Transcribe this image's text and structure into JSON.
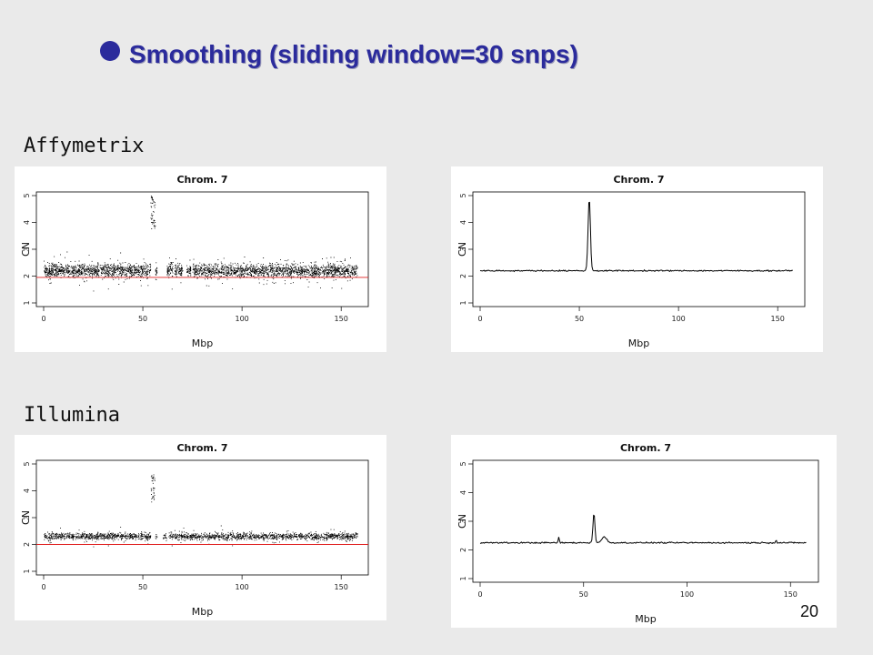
{
  "slide": {
    "title": "Smoothing (sliding window=30 snps)",
    "page_number": "20"
  },
  "sections": [
    {
      "label": "Affymetrix"
    },
    {
      "label": "Illumina"
    }
  ],
  "colors": {
    "title": "#2b2b9c",
    "reference_line": "#e02020",
    "data": "#000000"
  },
  "chart_data": [
    {
      "type": "scatter",
      "platform": "Affymetrix",
      "title": "Chrom. 7",
      "xlabel": "Mbp",
      "ylabel": "CN",
      "xlim": [
        0,
        160
      ],
      "ylim": [
        1,
        5
      ],
      "x_ticks": [
        0,
        50,
        100,
        150
      ],
      "y_ticks": [
        1,
        2,
        3,
        4,
        5
      ],
      "baseline": 2.2,
      "spread": 0.35,
      "reference_line": 1.95,
      "peak": {
        "x": 55,
        "y": 5.0,
        "width": 1.2
      },
      "gaps": [
        [
          57,
          62
        ],
        [
          65,
          66
        ],
        [
          70,
          72
        ],
        [
          74,
          75
        ]
      ],
      "x_range_data": [
        0,
        158
      ]
    },
    {
      "type": "line",
      "platform": "Affymetrix",
      "title": "Chrom. 7",
      "xlabel": "Mbp",
      "ylabel": "CN",
      "xlim": [
        0,
        160
      ],
      "ylim": [
        1,
        5
      ],
      "x_ticks": [
        0,
        50,
        100,
        150
      ],
      "y_ticks": [
        1,
        2,
        3,
        4,
        5
      ],
      "baseline": 2.2,
      "peak": {
        "x": 55,
        "y": 4.9,
        "width": 1.0
      },
      "bumps": [],
      "x_range_data": [
        0,
        158
      ]
    },
    {
      "type": "scatter",
      "platform": "Illumina",
      "title": "Chrom. 7",
      "xlabel": "Mbp",
      "ylabel": "CN",
      "xlim": [
        0,
        160
      ],
      "ylim": [
        1,
        5
      ],
      "x_ticks": [
        0,
        50,
        100,
        150
      ],
      "y_ticks": [
        1,
        2,
        3,
        4,
        5
      ],
      "baseline": 2.3,
      "spread": 0.18,
      "reference_line": 2.0,
      "peak": {
        "x": 55,
        "y": 4.6,
        "width": 1.0
      },
      "gaps": [
        [
          57,
          60
        ],
        [
          62,
          63
        ]
      ],
      "x_range_data": [
        0,
        158
      ]
    },
    {
      "type": "line",
      "platform": "Illumina",
      "title": "Chrom. 7",
      "xlabel": "Mbp",
      "ylabel": "CN",
      "xlim": [
        0,
        160
      ],
      "ylim": [
        1,
        5
      ],
      "x_ticks": [
        0,
        50,
        100,
        150
      ],
      "y_ticks": [
        1,
        2,
        3,
        4,
        5
      ],
      "baseline": 2.25,
      "peak": {
        "x": 55,
        "y": 3.3,
        "width": 0.8
      },
      "bumps": [
        {
          "x": 38,
          "y": 2.45,
          "width": 0.4
        },
        {
          "x": 60,
          "y": 2.45,
          "width": 2.0
        },
        {
          "x": 143,
          "y": 2.35,
          "width": 0.4
        }
      ],
      "x_range_data": [
        0,
        158
      ]
    }
  ]
}
